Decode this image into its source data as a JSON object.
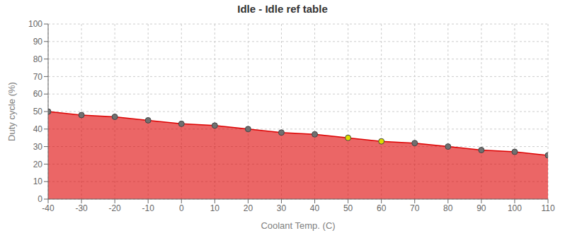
{
  "chart_data": {
    "type": "area",
    "title": "Idle - Idle ref table",
    "xlabel": "Coolant Temp. (C)",
    "ylabel": "Duty cycle (%)",
    "x": [
      -40,
      -30,
      -20,
      -10,
      0,
      10,
      20,
      30,
      40,
      50,
      60,
      70,
      80,
      90,
      100,
      110
    ],
    "series": [
      {
        "values": [
          50,
          48,
          47,
          45,
          43,
          42,
          40,
          38,
          37,
          35,
          33,
          32,
          30,
          28,
          27,
          25
        ],
        "color": "#dd0000",
        "marker": "circle",
        "colors": [
          "#707070",
          "#707070",
          "#707070",
          "#707070",
          "#707070",
          "#707070",
          "#707070",
          "#707070",
          "#707070",
          "#dddd00",
          "#dddd00",
          "#707070",
          "#707070",
          "#707070",
          "#707070",
          "#707070"
        ]
      }
    ],
    "xlim": [
      -40,
      110
    ],
    "ylim": [
      0,
      100
    ],
    "xticks": [
      -40,
      -30,
      -20,
      -10,
      0,
      10,
      20,
      30,
      40,
      50,
      60,
      70,
      80,
      90,
      100,
      110
    ],
    "yticks": [
      0,
      10,
      20,
      30,
      40,
      50,
      60,
      70,
      80,
      90,
      100
    ],
    "grid": true
  }
}
